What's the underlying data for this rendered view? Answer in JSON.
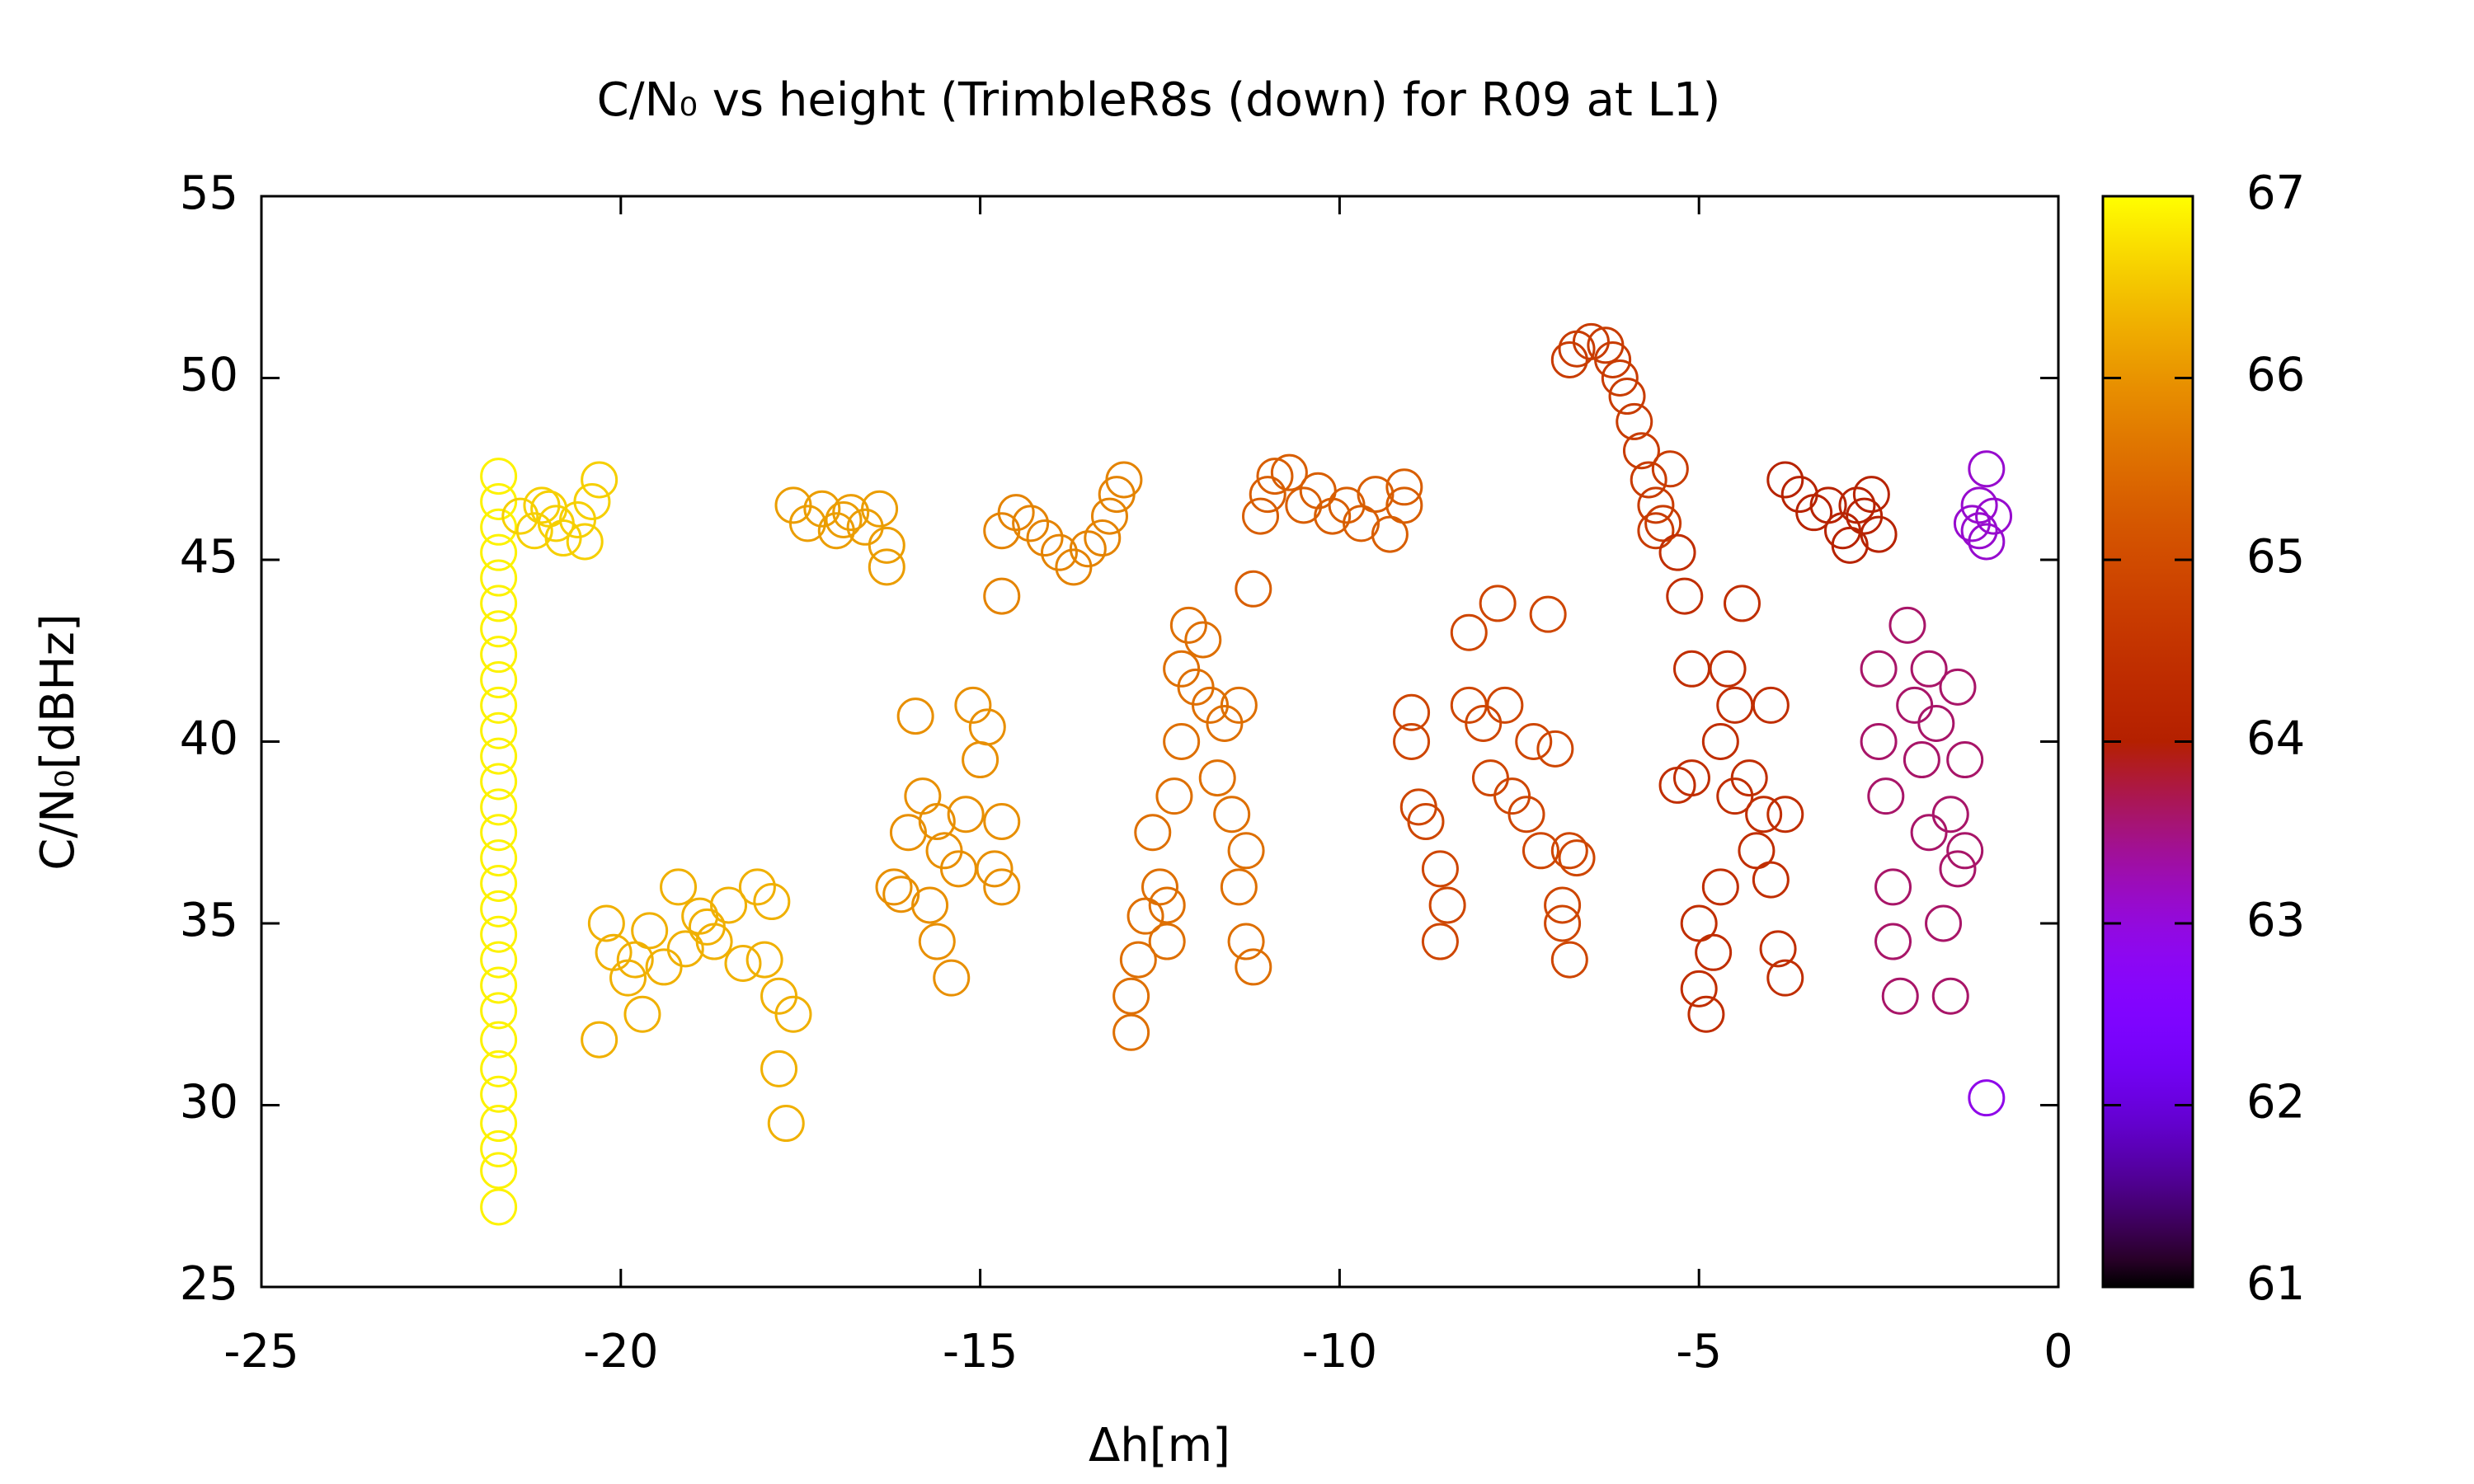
{
  "chart_data": {
    "type": "scatter",
    "title": "C/N₀ vs height (TrimbleR8s (down) for R09 at L1)",
    "x_label": "Δh[m]",
    "y_label": "C/N₀[dBHz]",
    "xlim": [
      -25,
      0
    ],
    "xticks": [
      -25,
      -20,
      -15,
      -10,
      -5,
      0
    ],
    "ylim": [
      25,
      55
    ],
    "yticks": [
      25,
      30,
      35,
      40,
      45,
      50,
      55
    ],
    "clim": [
      61,
      67
    ],
    "cticks": [
      61,
      62,
      63,
      64,
      65,
      66,
      67
    ],
    "palette": "gnuplot",
    "marker": "open-circle",
    "x": [
      -21.7,
      -21.7,
      -21.7,
      -21.7,
      -21.7,
      -21.7,
      -21.7,
      -21.7,
      -21.7,
      -21.7,
      -21.7,
      -21.7,
      -21.7,
      -21.7,
      -21.7,
      -21.7,
      -21.7,
      -21.7,
      -21.7,
      -21.7,
      -21.7,
      -21.7,
      -21.7,
      -21.7,
      -21.7,
      -21.7,
      -21.7,
      -21.7,
      -21.7,
      -21.4,
      -21.2,
      -21,
      -20.8,
      -20.6,
      -20.4,
      -20.3,
      -21.1,
      -20.9,
      -20.5,
      -20.3,
      -20.2,
      -20.1,
      -19.9,
      -19.7,
      -19.6,
      -19.4,
      -19.2,
      -19.1,
      -18.9,
      -18.7,
      -18.5,
      -18.3,
      -18.1,
      -18,
      -17.9,
      -17.8,
      -17.8,
      -17.7,
      -17.6,
      -19.8,
      -18.8,
      -17.6,
      -17.4,
      -17.2,
      -17,
      -16.8,
      -16.6,
      -16.4,
      -16.3,
      -16.3,
      -16.9,
      -16.2,
      -16,
      -15.9,
      -15.8,
      -15.7,
      -15.6,
      -15.5,
      -15.4,
      -15.3,
      -15.2,
      -15.1,
      -15,
      -14.9,
      -14.8,
      -14.7,
      -14.7,
      -15.6,
      -16.1,
      -14.7,
      -14.5,
      -14.3,
      -14.1,
      -13.9,
      -13.7,
      -13.5,
      -13.3,
      -13.2,
      -13.1,
      -13,
      -14.7,
      -12.9,
      -12.9,
      -12.8,
      -12.7,
      -12.6,
      -12.5,
      -12.4,
      -12.3,
      -12.2,
      -12.2,
      -12.1,
      -12,
      -11.9,
      -11.8,
      -11.7,
      -11.6,
      -11.5,
      -11.4,
      -11.3,
      -11.3,
      -11.2,
      -11.4,
      -12.4,
      -11.1,
      -11,
      -10.9,
      -10.7,
      -10.5,
      -10.3,
      -10.1,
      -9.9,
      -9.7,
      -9.5,
      -9.3,
      -9.1,
      -9.1,
      -11.2,
      -9,
      -9,
      -8.9,
      -8.8,
      -8.6,
      -8.6,
      -8.5,
      -8.2,
      -8.2,
      -8,
      -7.9,
      -7.8,
      -7.7,
      -7.6,
      -7.4,
      -7.3,
      -7.2,
      -7.1,
      -7,
      -6.9,
      -6.8,
      -6.8,
      -6.7,
      -6.9,
      -6.8,
      -6.7,
      -6.5,
      -6.3,
      -6.2,
      -6.1,
      -6,
      -5.9,
      -5.8,
      -5.7,
      -5.6,
      -5.5,
      -5.4,
      -5.6,
      -5.3,
      -5.2,
      -5.1,
      -5.1,
      -5,
      -5,
      -4.9,
      -4.8,
      -4.7,
      -4.7,
      -4.6,
      -4.5,
      -4.4,
      -4.3,
      -4.2,
      -4.1,
      -4,
      -4,
      -3.9,
      -3.8,
      -3.8,
      -5.3,
      -4.5,
      -3.8,
      -3.6,
      -3.4,
      -3.2,
      -3,
      -2.9,
      -2.8,
      -2.7,
      -2.6,
      -2.5,
      -2.5,
      -2.5,
      -2.4,
      -2.3,
      -2.3,
      -2.2,
      -2.1,
      -2,
      -1.9,
      -1.8,
      -1.8,
      -1.7,
      -1.6,
      -1.5,
      -1.5,
      -1.4,
      -1.4,
      -1.3,
      -1.3,
      -1.2,
      -1.1,
      -1,
      -1,
      -0.9,
      -1.1,
      -1
    ],
    "values": [
      27.2,
      28.2,
      28.8,
      29.5,
      30.3,
      31,
      31.8,
      32.6,
      33.3,
      34,
      34.7,
      35.4,
      36.1,
      36.8,
      37.5,
      38.2,
      38.9,
      39.6,
      40.3,
      41,
      41.7,
      42.4,
      43.1,
      43.8,
      44.5,
      45.2,
      45.9,
      46.6,
      47.3,
      46.2,
      45.8,
      46.4,
      45.6,
      46.1,
      46.6,
      47.2,
      46.5,
      46,
      45.5,
      31.8,
      35,
      34.2,
      33.5,
      32.5,
      34.8,
      33.8,
      36,
      34.3,
      35.2,
      34.5,
      35.5,
      33.9,
      36,
      34,
      35.6,
      33,
      31,
      29.5,
      32.5,
      34,
      34.9,
      46.5,
      46,
      46.4,
      45.8,
      46.3,
      45.9,
      46.4,
      45.4,
      44.8,
      46.1,
      36,
      37.5,
      40.7,
      38.5,
      35.5,
      34.5,
      37,
      33.5,
      36.5,
      38,
      41,
      39.5,
      40.4,
      36.5,
      37.8,
      36,
      37.8,
      35.8,
      45.8,
      46.3,
      46,
      45.6,
      45.2,
      44.8,
      45.3,
      45.6,
      46.2,
      46.8,
      47.2,
      44,
      32,
      33,
      34,
      35.2,
      37.5,
      36,
      34.5,
      38.5,
      40,
      42,
      43.2,
      41.5,
      42.8,
      41,
      39,
      40.5,
      38,
      36,
      37,
      34.5,
      33.8,
      41,
      35.5,
      46.2,
      46.8,
      47.3,
      47.4,
      46.5,
      46.9,
      46.2,
      46.5,
      46,
      46.8,
      45.7,
      46.5,
      47,
      44.2,
      40,
      40.8,
      38.2,
      37.8,
      36.5,
      34.5,
      35.5,
      43,
      41,
      40.5,
      39,
      43.8,
      41,
      38.5,
      38,
      40,
      37,
      43.5,
      39.8,
      35.5,
      37,
      34,
      36.8,
      35,
      50.5,
      50.8,
      51,
      50.9,
      50.5,
      50,
      49.5,
      48.8,
      48,
      47.2,
      46.5,
      46,
      47.5,
      45.8,
      45.2,
      44,
      42,
      39,
      35,
      33.2,
      32.5,
      34.2,
      36,
      40,
      42,
      41,
      43.8,
      39,
      37,
      38,
      36.2,
      41,
      34.3,
      33.5,
      38,
      38.8,
      38.5,
      47.2,
      46.8,
      46.3,
      46.5,
      45.8,
      45.4,
      46.5,
      46.2,
      46.8,
      45.7,
      42,
      40,
      38.5,
      36,
      34.5,
      33,
      43.2,
      41,
      39.5,
      37.5,
      42,
      40.5,
      35,
      33,
      38,
      41.5,
      36.5,
      39.5,
      37,
      46,
      46.5,
      47.5,
      45.5,
      46.2,
      45.8,
      30.2
    ],
    "color_values": [
      66.9,
      66.9,
      66.9,
      66.9,
      66.9,
      66.9,
      66.9,
      66.9,
      66.9,
      66.9,
      66.9,
      66.9,
      66.9,
      66.9,
      66.9,
      66.9,
      66.9,
      66.9,
      66.9,
      66.9,
      66.9,
      66.9,
      66.9,
      66.9,
      66.9,
      66.9,
      66.9,
      66.9,
      66.9,
      66.6,
      66.6,
      66.6,
      66.6,
      66.6,
      66.6,
      66.6,
      66.6,
      66.6,
      66.6,
      66.3,
      66.3,
      66.3,
      66.3,
      66.3,
      66.3,
      66.3,
      66.3,
      66.3,
      66.3,
      66.3,
      66.3,
      66.3,
      66.3,
      66.3,
      66.3,
      66.3,
      66.3,
      66.3,
      66.3,
      66.3,
      66.3,
      66.1,
      66.1,
      66.1,
      66.1,
      66.1,
      66.1,
      66.1,
      66.1,
      66.1,
      66.1,
      65.95,
      65.95,
      65.95,
      65.95,
      65.95,
      65.95,
      65.95,
      65.95,
      65.95,
      65.95,
      65.95,
      65.95,
      65.95,
      65.95,
      65.95,
      65.95,
      65.95,
      65.95,
      65.8,
      65.8,
      65.8,
      65.8,
      65.8,
      65.8,
      65.8,
      65.8,
      65.8,
      65.8,
      65.8,
      65.8,
      65.55,
      65.55,
      65.55,
      65.55,
      65.55,
      65.55,
      65.55,
      65.55,
      65.55,
      65.55,
      65.55,
      65.55,
      65.55,
      65.55,
      65.55,
      65.55,
      65.55,
      65.55,
      65.55,
      65.55,
      65.55,
      65.55,
      65.55,
      65.3,
      65.3,
      65.3,
      65.3,
      65.3,
      65.3,
      65.3,
      65.3,
      65.3,
      65.3,
      65.3,
      65.3,
      65.3,
      65.3,
      64.9,
      64.9,
      64.9,
      64.9,
      64.9,
      64.9,
      64.9,
      64.9,
      64.9,
      64.9,
      64.9,
      64.9,
      64.9,
      64.9,
      64.9,
      64.9,
      64.9,
      64.9,
      64.9,
      64.9,
      64.9,
      64.9,
      64.9,
      64.9,
      64.7,
      64.7,
      64.7,
      64.7,
      64.7,
      64.7,
      64.7,
      64.7,
      64.7,
      64.7,
      64.7,
      64.7,
      64.7,
      64.7,
      64.4,
      64.4,
      64.4,
      64.4,
      64.4,
      64.4,
      64.4,
      64.4,
      64.4,
      64.4,
      64.4,
      64.4,
      64.4,
      64.4,
      64.4,
      64.4,
      64.4,
      64.4,
      64.4,
      64.4,
      64.4,
      64.4,
      64.4,
      64.1,
      64.1,
      64.1,
      64.1,
      64.1,
      64.1,
      64.1,
      64.1,
      64.1,
      64.1,
      63.6,
      63.6,
      63.6,
      63.6,
      63.6,
      63.6,
      63.6,
      63.6,
      63.6,
      63.6,
      63.6,
      63.6,
      63.6,
      63.6,
      63.6,
      63.6,
      63.6,
      63.6,
      63.6,
      63.1,
      63.1,
      63.1,
      63.1,
      63.1,
      63.1,
      62.9
    ]
  }
}
